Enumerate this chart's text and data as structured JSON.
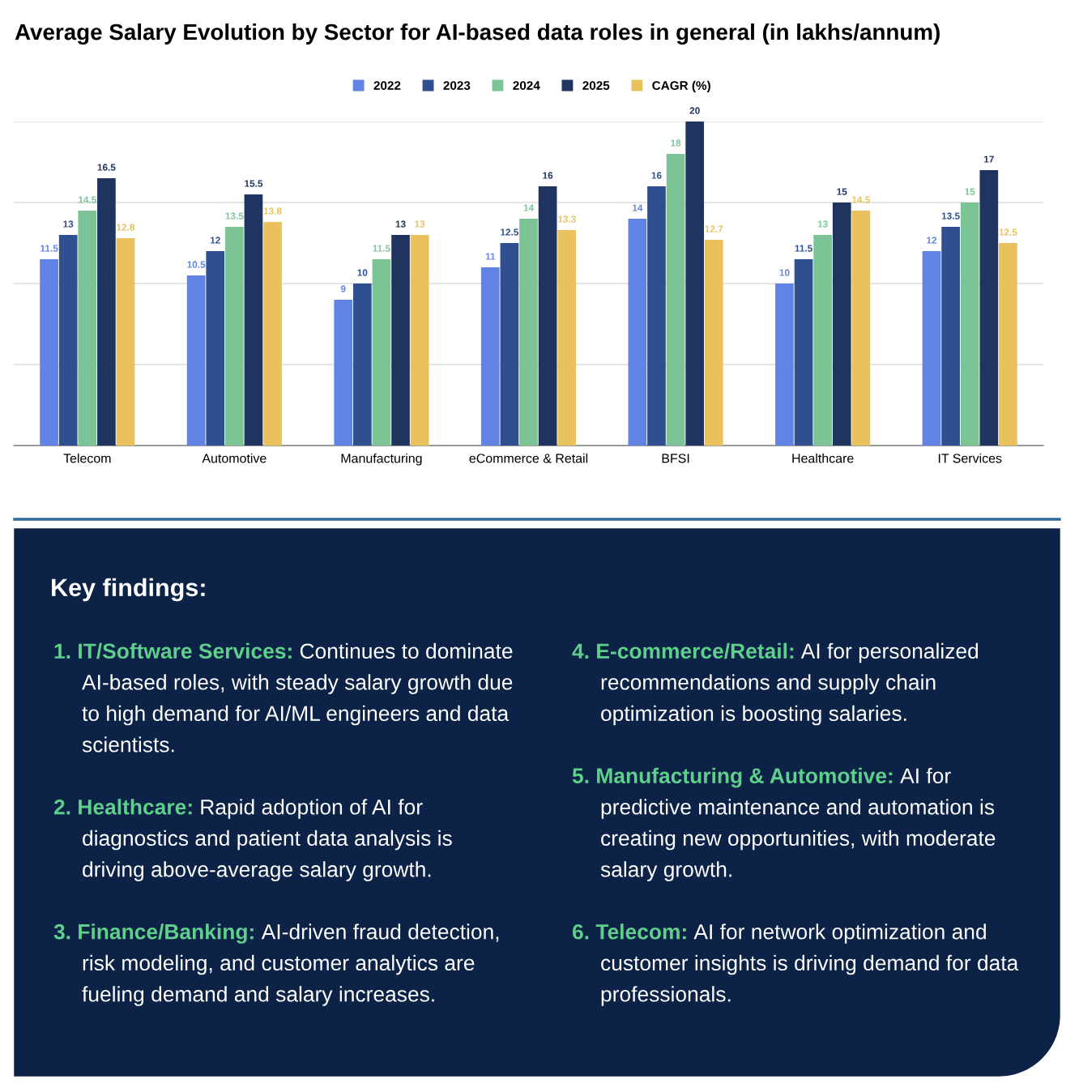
{
  "chart_data": [
    {
      "type": "bar",
      "title": "Average Salary Evolution by Sector for AI-based data roles in general (in lakhs/annum)",
      "categories": [
        "Telecom",
        "Automotive",
        "Manufacturing",
        "eCommerce & Retail",
        "BFSI",
        "Healthcare",
        "IT Services"
      ],
      "series": [
        {
          "name": "2022",
          "color": "#6184e4",
          "values": [
            11.5,
            10.5,
            9,
            11,
            14,
            10,
            12
          ]
        },
        {
          "name": "2023",
          "color": "#2f4f8f",
          "values": [
            13,
            12,
            10,
            12.5,
            16,
            11.5,
            13.5
          ]
        },
        {
          "name": "2024",
          "color": "#7cc496",
          "values": [
            14.5,
            13.5,
            11.5,
            14,
            18,
            13,
            15
          ]
        },
        {
          "name": "2025",
          "color": "#1f3560",
          "values": [
            16.5,
            15.5,
            13,
            16,
            20,
            15,
            17
          ]
        },
        {
          "name": "CAGR (%)",
          "color": "#e9c25e",
          "values": [
            12.8,
            13.8,
            13,
            13.3,
            12.7,
            14.5,
            12.5
          ]
        }
      ],
      "ylim": [
        0,
        20
      ],
      "yticks": [
        {
          "value": 0,
          "label": null
        },
        {
          "value": 5,
          "label": null
        },
        {
          "value": 10,
          "label": null
        },
        {
          "value": 15,
          "label": null
        },
        {
          "value": 20,
          "label": null
        }
      ],
      "tick_labels": "x",
      "grid": "y",
      "legend": "top",
      "data_labels": true
    },
    {
      "type": "other",
      "title": "Key findings:",
      "annotations": [
        "1. IT/Software Services:",
        "Continues to dominate AI-based roles, with steady salary growth due to high demand for AI/ML engineers and data scientists.",
        "2. Healthcare:",
        "Rapid adoption of AI for diagnostics and patient data analysis is driving above-average salary growth.",
        "3. Finance/Banking:",
        "AI-driven fraud detection, risk modeling, and customer analytics are fueling demand and salary increases.",
        "4. E-commerce/Retail:",
        "AI for personalized recommendations and supply chain optimization is boosting salaries.",
        "5. Manufacturing & Automotive:",
        "AI for predictive maintenance and automation is creating new opportunities, with moderate salary growth.",
        "6. Telecom:",
        "AI for network optimization and customer insights is driving demand for data professionals."
      ]
    }
  ]
}
